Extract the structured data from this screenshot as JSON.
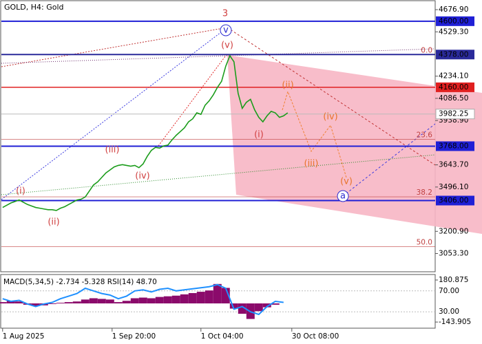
{
  "chart_data": [
    {
      "type": "line",
      "title": "GOLD, H4:  Gold",
      "color": "#1a9c1a",
      "x": [
        0,
        1,
        2,
        3,
        4,
        5,
        6,
        7,
        8,
        9,
        10,
        11,
        12,
        13,
        14,
        15,
        16,
        17,
        18,
        19,
        20,
        21,
        22,
        23,
        24,
        25,
        26,
        27,
        28,
        29,
        30,
        31,
        32,
        33,
        34,
        35,
        36,
        37,
        38,
        39,
        40,
        41,
        42,
        43,
        44,
        45,
        46,
        47,
        48,
        49,
        50,
        51,
        52,
        53,
        54,
        55,
        56,
        57,
        58,
        59,
        60,
        61,
        62,
        63,
        64,
        65,
        66,
        67,
        68,
        69
      ],
      "values": [
        3360,
        3375,
        3390,
        3400,
        3410,
        3395,
        3380,
        3370,
        3360,
        3355,
        3350,
        3345,
        3345,
        3340,
        3355,
        3365,
        3380,
        3395,
        3410,
        3415,
        3430,
        3470,
        3510,
        3530,
        3560,
        3590,
        3610,
        3630,
        3640,
        3645,
        3640,
        3635,
        3640,
        3625,
        3650,
        3700,
        3740,
        3760,
        3755,
        3770,
        3775,
        3810,
        3840,
        3865,
        3890,
        3930,
        3950,
        3990,
        3980,
        4040,
        4070,
        4110,
        4160,
        4200,
        4300,
        4370,
        4330,
        4120,
        4020,
        4060,
        4080,
        4010,
        3960,
        3930,
        3970,
        4000,
        3990,
        3960,
        3970,
        3990
      ],
      "xlim": [
        -0.3,
        104.7
      ],
      "ylim": [
        2932,
        4732
      ],
      "xticks": [
        {
          "value": 0,
          "label": "1 Aug 2025"
        },
        {
          "value": 26.5,
          "label": "1 Sep 20:00"
        },
        {
          "value": 48,
          "label": "1 Oct 04:00"
        },
        {
          "value": 70,
          "label": "30 Oct 08:00"
        }
      ],
      "yticks": [
        {
          "value": 4676.9,
          "label": "4676.90"
        },
        {
          "value": 4529.3,
          "label": "4529.30"
        },
        {
          "value": 4234.1,
          "label": "4234.10"
        },
        {
          "value": 4086.5,
          "label": "4086.50"
        },
        {
          "value": 3938.9,
          "label": "3938.90"
        },
        {
          "value": 3643.7,
          "label": "3643.70"
        },
        {
          "value": 3496.1,
          "label": "3496.10"
        },
        {
          "value": 3200.9,
          "label": "3200.90"
        },
        {
          "value": 3053.3,
          "label": "3053.30"
        }
      ],
      "levels": [
        {
          "value": 4600,
          "label": "4600.00",
          "color": "#1f1fd6"
        },
        {
          "value": 4378,
          "label": "4378.00",
          "color": "#2a2a9a"
        },
        {
          "value": 4160,
          "label": "4160.00",
          "color": "#e02020"
        },
        {
          "value": 3768,
          "label": "3768.00",
          "color": "#1f1fd6"
        },
        {
          "value": 3406,
          "label": "3406.00",
          "color": "#1f1fd6"
        }
      ],
      "current_price": {
        "value": 3982.25,
        "label": "3982.25"
      },
      "fib_levels": [
        {
          "value": 4378,
          "label": "0.0"
        },
        {
          "value": 3814,
          "label": "23.6"
        },
        {
          "value": 3431,
          "label": "38.2"
        },
        {
          "value": 3100,
          "label": "50.0"
        }
      ],
      "annotations": [
        "3",
        "v",
        "(v)",
        "(iii)",
        "(iv)",
        "(i)",
        "(ii)",
        "(i)",
        "(ii)",
        "(iii)",
        "(iv)",
        "(v)",
        "a"
      ]
    },
    {
      "type": "macd",
      "title": "MACD(5,34,5) -2.734 -5.328 RSI(14) 48.70",
      "histogram": [
        10,
        20,
        15,
        -10,
        -20,
        -15,
        -5,
        5,
        10,
        15,
        30,
        40,
        35,
        30,
        10,
        20,
        40,
        45,
        40,
        50,
        55,
        60,
        70,
        80,
        90,
        100,
        150,
        120,
        -40,
        -80,
        -120,
        -60,
        -30,
        -10,
        0
      ],
      "histogram_color": "#8b0a6b",
      "rsi": [
        55,
        50,
        52,
        45,
        40,
        45,
        48,
        55,
        60,
        65,
        75,
        70,
        65,
        62,
        55,
        60,
        70,
        72,
        68,
        73,
        75,
        70,
        72,
        74,
        76,
        78,
        82,
        75,
        35,
        40,
        30,
        25,
        40,
        50,
        48
      ],
      "rsi_color": "#1e90ff",
      "ylim": [
        -186,
        218
      ],
      "yticks": [
        {
          "value": 180.875,
          "label": "180.875"
        },
        {
          "value": -143.905,
          "label": "-143.905"
        }
      ],
      "rsi_ylim": [
        0,
        100
      ],
      "rsi_ticks": [
        {
          "value": 70,
          "label": "70.00"
        },
        {
          "value": 30,
          "label": "30.00"
        }
      ]
    }
  ]
}
